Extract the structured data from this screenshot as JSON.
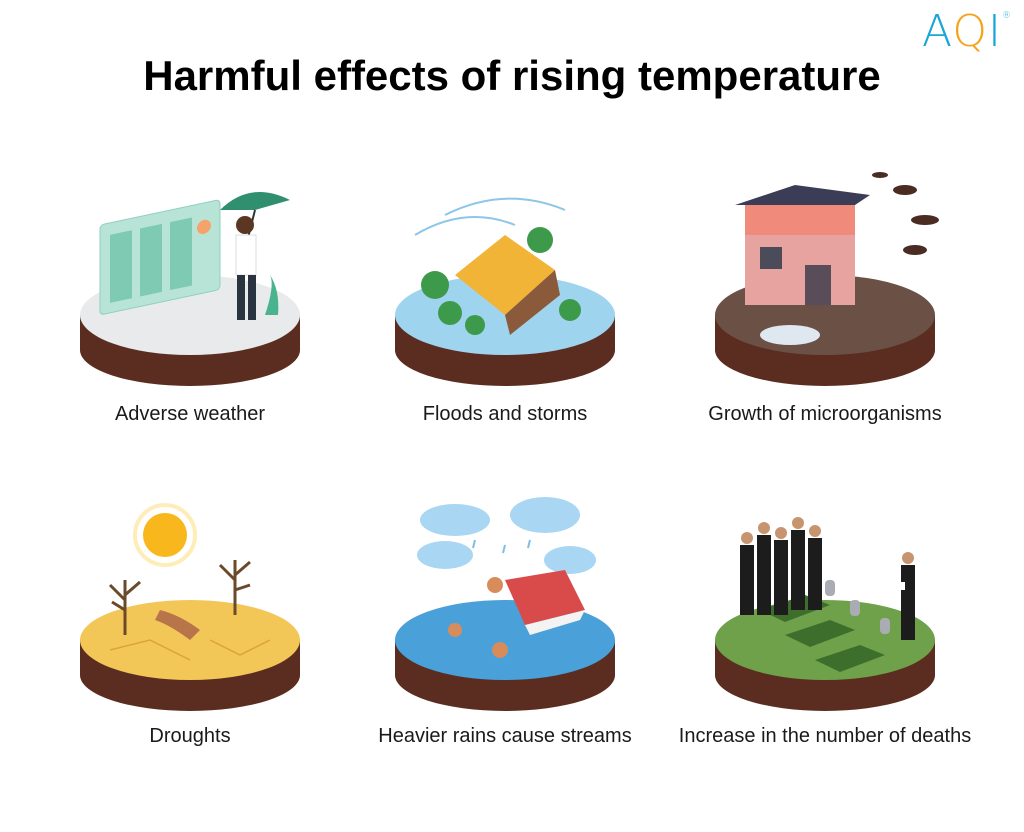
{
  "brand": {
    "logo_text_a": "A",
    "logo_text_q": "Q",
    "logo_text_i": "I",
    "logo_mark": "®"
  },
  "title": "Harmful effects of rising temperature",
  "items": [
    {
      "caption": "Adverse weather",
      "illustration": "weather-forecast-man-umbrella"
    },
    {
      "caption": "Floods and storms",
      "illustration": "flooded-house-storm"
    },
    {
      "caption": "Growth of microorganisms",
      "illustration": "dirty-house-insects"
    },
    {
      "caption": "Droughts",
      "illustration": "cracked-earth-sun"
    },
    {
      "caption": "Heavier rains cause streams",
      "illustration": "rain-flooded-roof-people"
    },
    {
      "caption": "Increase in the number of deaths",
      "illustration": "cemetery-mourners"
    }
  ],
  "colors": {
    "soil": "#5b2d20",
    "weather_top": "#e8eaec",
    "flood_top": "#9fd4ee",
    "micro_top": "#6b5046",
    "drought_top": "#f3c658",
    "rain_top": "#4aa0d8",
    "grave_top": "#6fa04a"
  }
}
